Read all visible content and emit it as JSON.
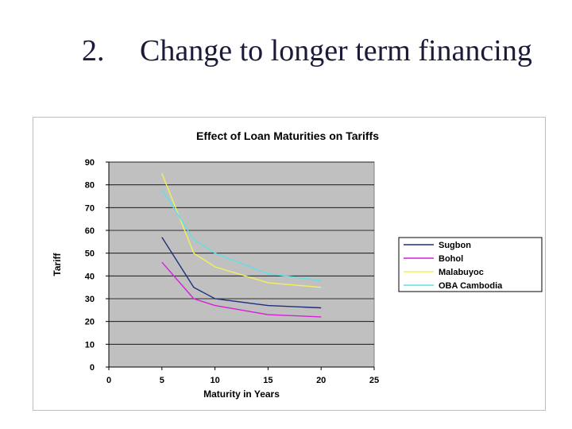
{
  "slide": {
    "number": "2.",
    "title": "Change to longer term financing"
  },
  "chart_data": {
    "type": "line",
    "title": "Effect of Loan Maturities on Tariffs",
    "xlabel": "Maturity in Years",
    "ylabel": "Tariff",
    "xlim": [
      0,
      25
    ],
    "ylim": [
      0,
      90
    ],
    "xticks": [
      0,
      5,
      10,
      15,
      20,
      25
    ],
    "yticks": [
      0,
      10,
      20,
      30,
      40,
      50,
      60,
      70,
      80,
      90
    ],
    "grid": true,
    "legend_position": "right",
    "x": [
      5,
      8,
      10,
      15,
      20
    ],
    "series": [
      {
        "name": "Sugbon",
        "color": "#1f2f7a",
        "values": [
          57,
          35,
          30,
          27,
          26
        ]
      },
      {
        "name": "Bohol",
        "color": "#d61fd6",
        "values": [
          46,
          30,
          27,
          23,
          22
        ]
      },
      {
        "name": "Malabuyoc",
        "color": "#f2f25a",
        "values": [
          85,
          50,
          44,
          37,
          35
        ]
      },
      {
        "name": "OBA Cambodia",
        "color": "#5fe0e8",
        "values": [
          78,
          56,
          50,
          41,
          38
        ]
      }
    ]
  }
}
